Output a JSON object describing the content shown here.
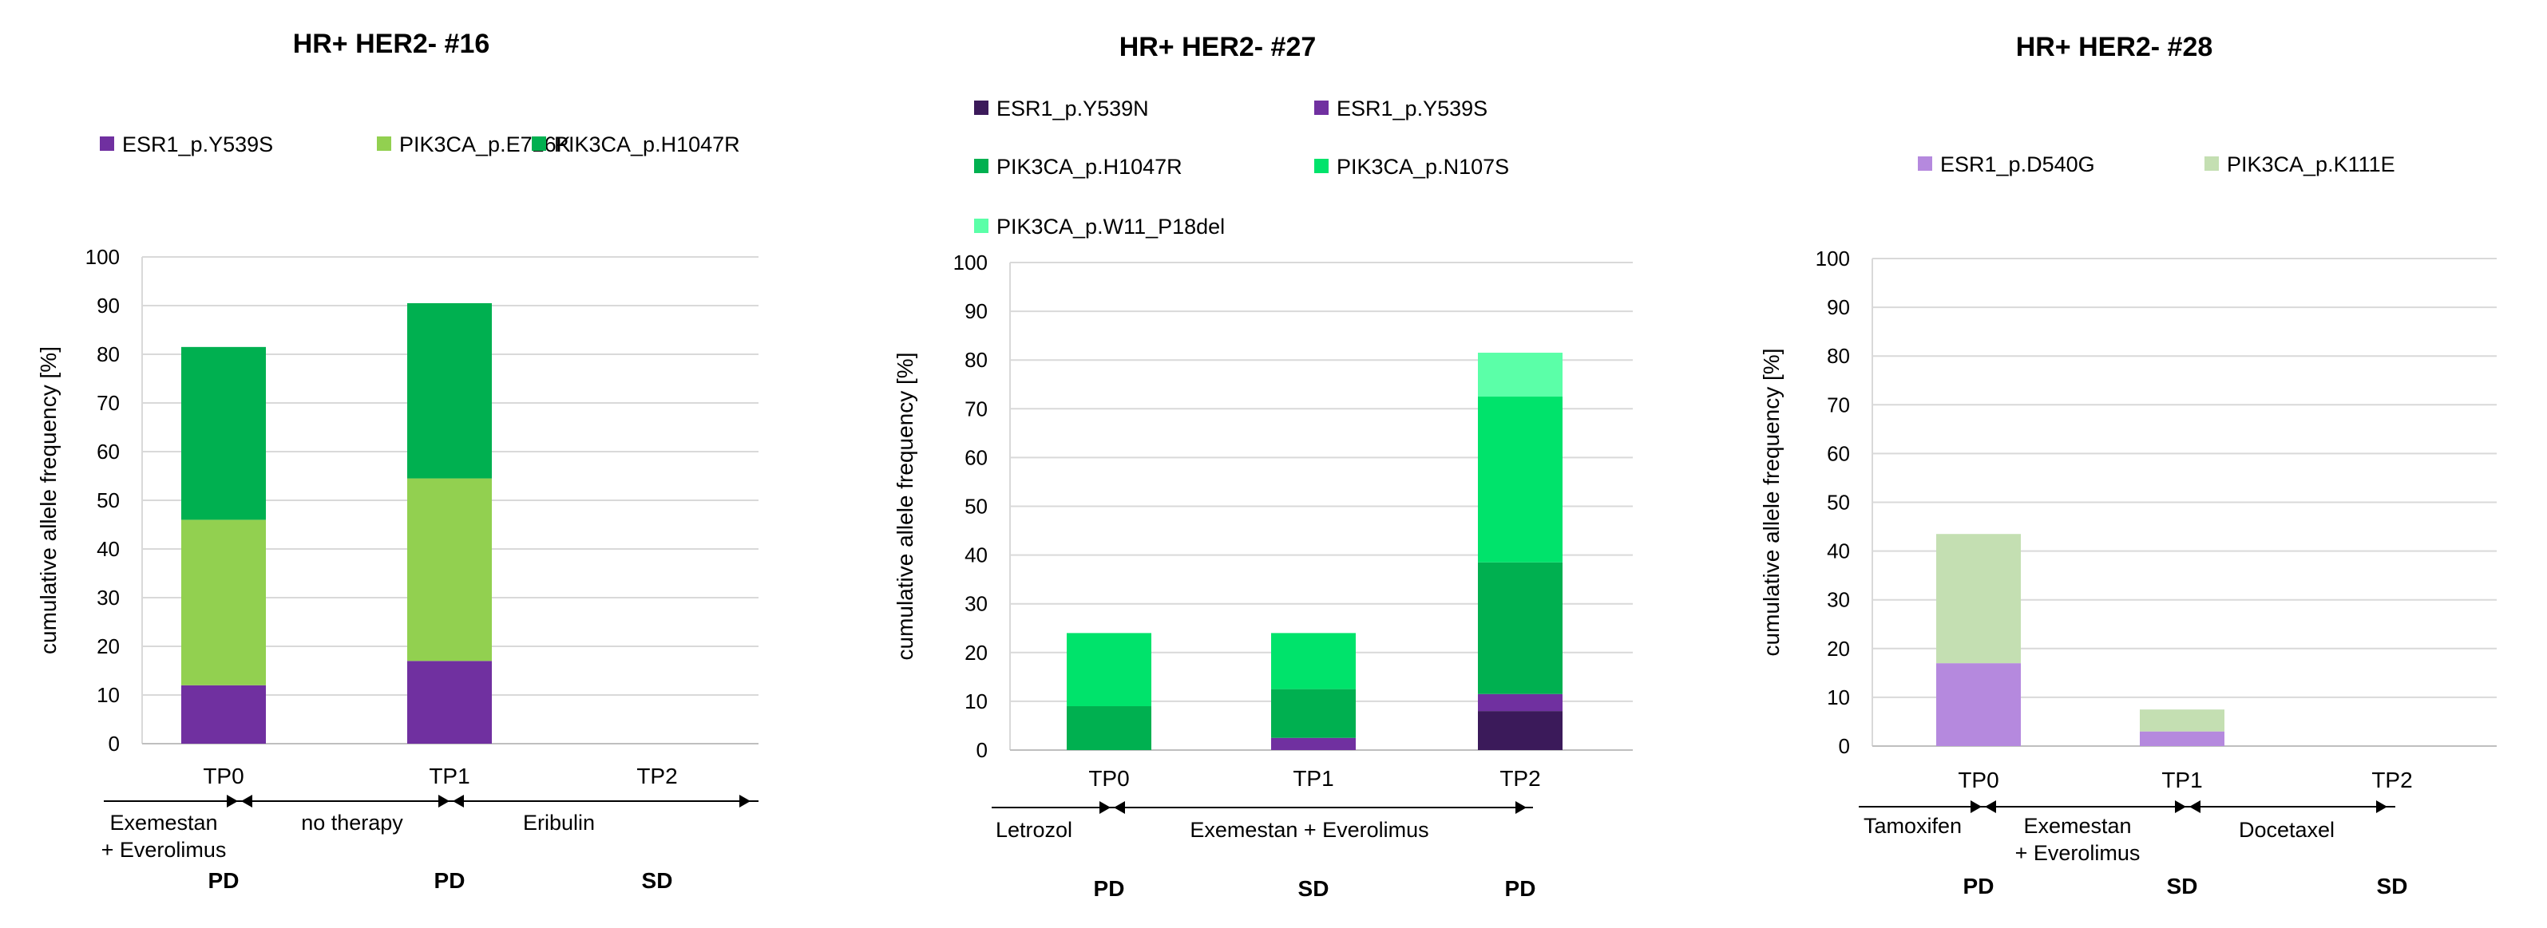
{
  "chart_data": [
    {
      "type": "bar",
      "stacked": true,
      "title": "HR+ HER2- #16",
      "ylabel": "cumulative allele frequency [%]",
      "ylim": [
        0,
        100
      ],
      "yticks": [
        0,
        10,
        20,
        30,
        40,
        50,
        60,
        70,
        80,
        90,
        100
      ],
      "grid": true,
      "legend": "top",
      "categories": [
        "TP0",
        "TP1",
        "TP2"
      ],
      "series": [
        {
          "name": "ESR1_p.Y539S",
          "color": "#7030A0",
          "values": [
            12,
            17,
            0
          ]
        },
        {
          "name": "PIK3CA_p.E726K",
          "color": "#92D050",
          "values": [
            34,
            37.5,
            0
          ]
        },
        {
          "name": "PIK3CA_p.H1047R",
          "color": "#00B050",
          "values": [
            35.5,
            36,
            0
          ]
        }
      ],
      "therapies": [
        {
          "lines": [
            "Exemestan",
            "+ Everolimus"
          ]
        },
        {
          "lines": [
            "no therapy"
          ]
        },
        {
          "lines": [
            "Eribulin"
          ]
        }
      ],
      "responses": [
        "PD",
        "PD",
        "SD"
      ]
    },
    {
      "type": "bar",
      "stacked": true,
      "title": "HR+ HER2- #27",
      "ylabel": "cumulative allele frequency [%]",
      "ylim": [
        0,
        100
      ],
      "yticks": [
        0,
        10,
        20,
        30,
        40,
        50,
        60,
        70,
        80,
        90,
        100
      ],
      "grid": true,
      "legend": "top",
      "categories": [
        "TP0",
        "TP1",
        "TP2"
      ],
      "series": [
        {
          "name": "ESR1_p.Y539N",
          "color": "#3B1A5A",
          "values": [
            0,
            0,
            8
          ]
        },
        {
          "name": "ESR1_p.Y539S",
          "color": "#7030A0",
          "values": [
            0,
            2.5,
            3.5
          ]
        },
        {
          "name": "PIK3CA_p.H1047R",
          "color": "#00B050",
          "values": [
            9,
            10,
            27
          ]
        },
        {
          "name": "PIK3CA_p.N107S",
          "color": "#00E36B",
          "values": [
            15,
            11.5,
            34
          ]
        },
        {
          "name": "PIK3CA_p.W11_P18del",
          "color": "#5BFFA8",
          "values": [
            0,
            0,
            9
          ]
        }
      ],
      "therapies": [
        {
          "lines": [
            "Letrozol"
          ]
        },
        {
          "lines": [
            "Exemestan + Everolimus"
          ]
        }
      ],
      "responses": [
        "PD",
        "SD",
        "PD"
      ]
    },
    {
      "type": "bar",
      "stacked": true,
      "title": "HR+ HER2- #28",
      "ylabel": "cumulative allele frequency [%]",
      "ylim": [
        0,
        100
      ],
      "yticks": [
        0,
        10,
        20,
        30,
        40,
        50,
        60,
        70,
        80,
        90,
        100
      ],
      "grid": true,
      "legend": "top",
      "categories": [
        "TP0",
        "TP1",
        "TP2"
      ],
      "series": [
        {
          "name": "ESR1_p.D540G",
          "color": "#B589DE",
          "values": [
            17,
            3,
            0
          ]
        },
        {
          "name": "PIK3CA_p.K111E",
          "color": "#C4DFB2",
          "values": [
            26.5,
            4.5,
            0
          ]
        }
      ],
      "therapies": [
        {
          "lines": [
            "Tamoxifen"
          ]
        },
        {
          "lines": [
            "Exemestan",
            "+ Everolimus"
          ]
        },
        {
          "lines": [
            "Docetaxel"
          ]
        }
      ],
      "responses": [
        "PD",
        "SD",
        "SD"
      ]
    }
  ]
}
